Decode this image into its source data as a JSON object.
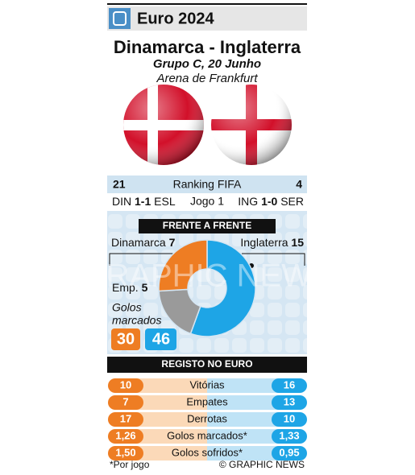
{
  "header": {
    "title": "Euro 2024"
  },
  "match": {
    "title": "Dinamarca - Inglaterra",
    "subtitle": "Grupo C, 20 Junho",
    "venue": "Arena de Frankfurt"
  },
  "ranking": {
    "home": 21,
    "label": "Ranking FIFA",
    "away": 4
  },
  "game1": {
    "home_team": "DIN",
    "home_score": "1-1",
    "home_opponent": "ESL",
    "label": "Jogo 1",
    "away_team": "ING",
    "away_score": "1-0",
    "away_opponent": "SER"
  },
  "head_to_head": {
    "title": "FRENTE A FRENTE",
    "home_name": "Dinamarca",
    "home_wins": 7,
    "away_name": "Inglaterra",
    "away_wins": 15,
    "draws_label": "Emp.",
    "draws": 5,
    "goals_label_1": "Golos",
    "goals_label_2": "marcados",
    "home_goals": 30,
    "away_goals": 46
  },
  "record": {
    "title": "REGISTO NO EURO",
    "rows": [
      {
        "label": "Vitórias",
        "home": "10",
        "away": "16"
      },
      {
        "label": "Empates",
        "home": "7",
        "away": "13"
      },
      {
        "label": "Derrotas",
        "home": "17",
        "away": "10"
      },
      {
        "label": "Golos marcados*",
        "home": "1,26",
        "away": "1,33"
      },
      {
        "label": "Golos sofridos*",
        "home": "1,50",
        "away": "0,95"
      }
    ]
  },
  "footer": {
    "note": "*Por jogo",
    "credit": "© GRAPHIC NEWS"
  },
  "watermark": "GRAPHIC NEWS"
}
